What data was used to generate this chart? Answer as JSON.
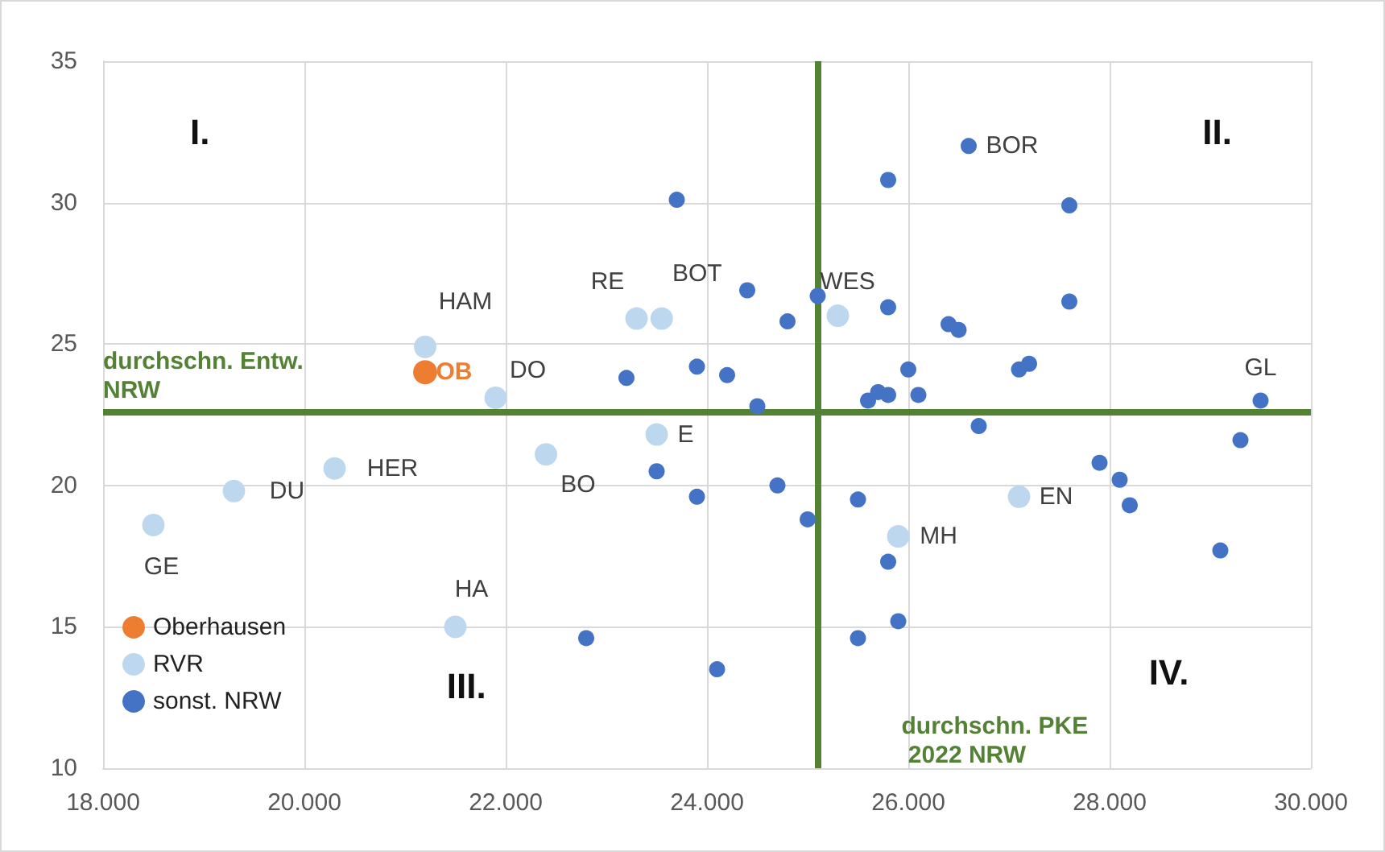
{
  "chart_data": {
    "type": "scatter",
    "series": [
      {
        "name": "Oberhausen",
        "color": "#ed7d31",
        "x": [
          21200
        ],
        "values": [
          24.0
        ]
      },
      {
        "name": "RVR",
        "color": "#bdd7ee",
        "x": [
          21200,
          21900,
          23300,
          23550,
          25300,
          23500,
          22400,
          20300,
          19300,
          18500,
          21500,
          25900,
          27100
        ],
        "values": [
          24.9,
          23.1,
          25.9,
          25.9,
          26.0,
          21.8,
          21.1,
          20.6,
          19.8,
          18.6,
          15.0,
          18.2,
          19.6
        ]
      },
      {
        "name": "sonst. NRW",
        "color": "#4472c4",
        "x": [
          25800,
          26600,
          27600,
          23700,
          24400,
          25100,
          25800,
          27600,
          24800,
          26400,
          26500,
          23900,
          24200,
          26000,
          27100,
          27200,
          25700,
          25600,
          25800,
          26100,
          24500,
          29500,
          23200,
          23500,
          23900,
          22800,
          26700,
          29300,
          27900,
          28100,
          28200,
          24700,
          25000,
          25500,
          25800,
          25900,
          25500,
          24100,
          29100
        ],
        "values": [
          30.8,
          32.0,
          29.9,
          30.1,
          26.9,
          26.7,
          26.3,
          26.5,
          25.8,
          25.7,
          25.5,
          24.2,
          23.9,
          24.1,
          24.1,
          24.3,
          23.3,
          23.0,
          23.2,
          23.2,
          22.8,
          23.0,
          23.8,
          20.5,
          19.6,
          14.6,
          22.1,
          21.6,
          20.8,
          20.2,
          19.3,
          20.0,
          18.8,
          19.5,
          17.3,
          15.2,
          14.6,
          13.5,
          17.7
        ]
      }
    ],
    "xlim": [
      18000,
      30000
    ],
    "xticks": [
      {
        "value": 18000,
        "label": "18.000"
      },
      {
        "value": 20000,
        "label": "20.000"
      },
      {
        "value": 22000,
        "label": "22.000"
      },
      {
        "value": 24000,
        "label": "24.000"
      },
      {
        "value": 26000,
        "label": "26.000"
      },
      {
        "value": 28000,
        "label": "28.000"
      },
      {
        "value": 30000,
        "label": "30.000"
      }
    ],
    "ylim": [
      10,
      35
    ],
    "yticks": [
      10,
      15,
      20,
      25,
      30,
      35
    ],
    "ref_lines": [
      {
        "axis": "y",
        "value": 22.6,
        "label": "durchschn. Entw. NRW",
        "color": "#548235"
      },
      {
        "axis": "x",
        "value": 25100,
        "label": "durchschn. PKE 2022 NRW",
        "color": "#548235"
      }
    ],
    "annotations": [
      "I.",
      "II.",
      "III.",
      "IV.",
      {
        "text": "HAM",
        "x": 21200,
        "y": 24.9
      },
      {
        "text": "OB",
        "x": 21200,
        "y": 24.0
      },
      {
        "text": "DO",
        "x": 21900,
        "y": 23.1
      },
      {
        "text": "RE",
        "x": 23300,
        "y": 25.9
      },
      {
        "text": "BOT",
        "x": 23550,
        "y": 25.9
      },
      {
        "text": "WES",
        "x": 25300,
        "y": 26.0
      },
      {
        "text": "E",
        "x": 23500,
        "y": 21.8
      },
      {
        "text": "BO",
        "x": 22400,
        "y": 21.1
      },
      {
        "text": "HER",
        "x": 20300,
        "y": 20.6
      },
      {
        "text": "DU",
        "x": 19300,
        "y": 19.8
      },
      {
        "text": "GE",
        "x": 18500,
        "y": 18.6
      },
      {
        "text": "HA",
        "x": 21500,
        "y": 15.0
      },
      {
        "text": "MH",
        "x": 25900,
        "y": 18.2
      },
      {
        "text": "EN",
        "x": 27100,
        "y": 19.6
      },
      {
        "text": "BOR",
        "x": 26600,
        "y": 32.0
      },
      {
        "text": "GL",
        "x": 29500,
        "y": 23.0
      }
    ],
    "grid": true,
    "legend": "bottom left",
    "marker": "circle"
  }
}
